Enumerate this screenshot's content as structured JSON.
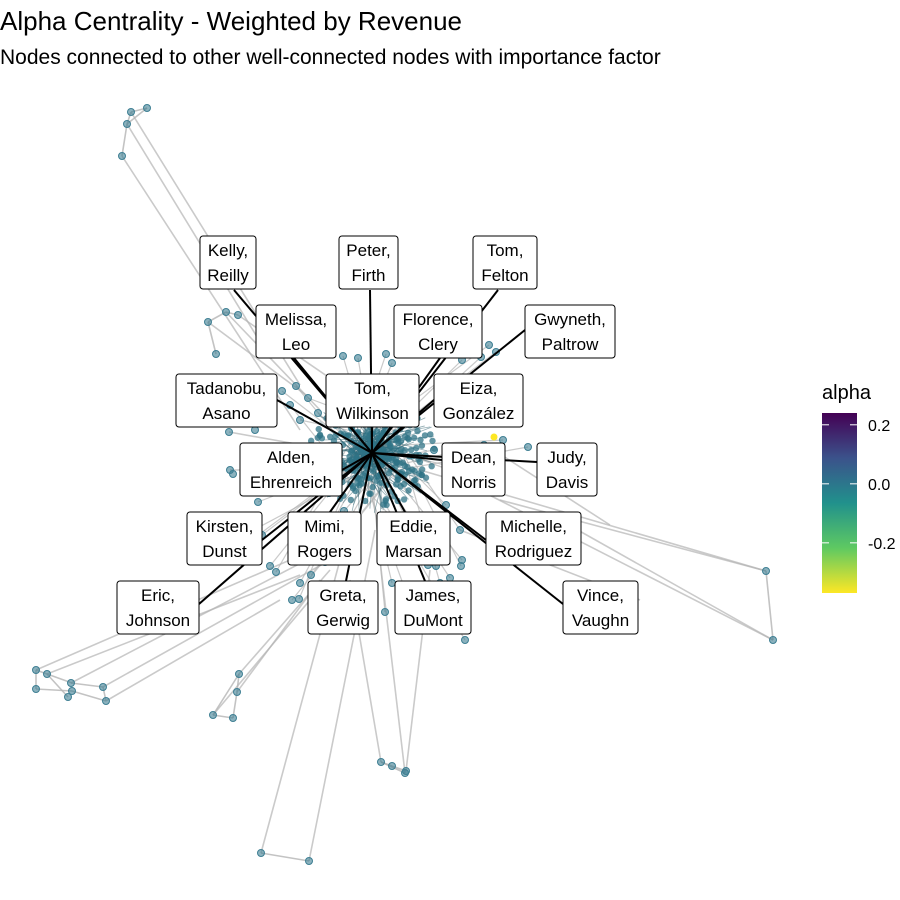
{
  "chart_data": {
    "type": "network",
    "title": "Alpha Centrality - Weighted by Revenue",
    "subtitle": "Nodes connected to other well-connected nodes with importance factor",
    "legend": {
      "title": "alpha",
      "placement": "right",
      "ticks": [
        "0.2",
        "0.0",
        "-0.2"
      ],
      "tick_values": [
        0.2,
        0.0,
        -0.2
      ],
      "range": [
        -0.37,
        0.24
      ],
      "colors": [
        "#fde725",
        "#5ec962",
        "#21918c",
        "#3b528b",
        "#440154"
      ]
    },
    "node_color": "#3e7f93",
    "edge_color": "#b4b4b4",
    "labeled_nodes": [
      {
        "line1": "Kelly,",
        "line2": "Reilly"
      },
      {
        "line1": "Peter,",
        "line2": "Firth"
      },
      {
        "line1": "Tom,",
        "line2": "Felton"
      },
      {
        "line1": "Melissa,",
        "line2": "Leo"
      },
      {
        "line1": "Florence,",
        "line2": "Clery"
      },
      {
        "line1": "Gwyneth,",
        "line2": "Paltrow"
      },
      {
        "line1": "Tadanobu,",
        "line2": "Asano"
      },
      {
        "line1": "Tom,",
        "line2": "Wilkinson"
      },
      {
        "line1": "Eiza,",
        "line2": "González"
      },
      {
        "line1": "Alden,",
        "line2": "Ehrenreich"
      },
      {
        "line1": "Dean,",
        "line2": "Norris"
      },
      {
        "line1": "Judy,",
        "line2": "Davis"
      },
      {
        "line1": "Kirsten,",
        "line2": "Dunst"
      },
      {
        "line1": "Mimi,",
        "line2": "Rogers"
      },
      {
        "line1": "Eddie,",
        "line2": "Marsan"
      },
      {
        "line1": "Michelle,",
        "line2": "Rodriguez"
      },
      {
        "line1": "Eric,",
        "line2": "Johnson"
      },
      {
        "line1": "Greta,",
        "line2": "Gerwig"
      },
      {
        "line1": "James,",
        "line2": "DuMont"
      },
      {
        "line1": "Vince,",
        "line2": "Vaughn"
      }
    ]
  }
}
